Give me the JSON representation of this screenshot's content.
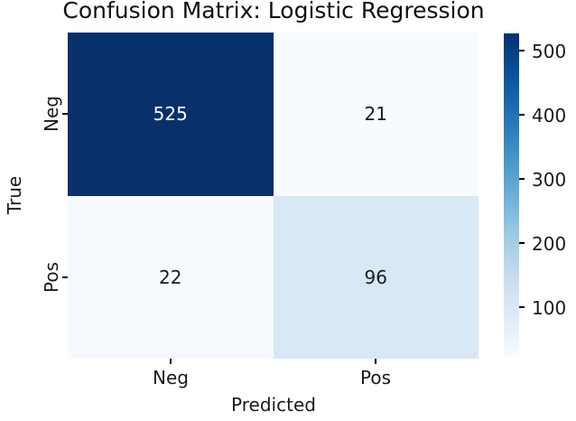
{
  "figure": {
    "background": "#ffffff",
    "text_color": "#1a1a1a"
  },
  "chart_data": {
    "type": "heatmap",
    "title": "Confusion Matrix: Logistic Regression",
    "xlabel": "Predicted",
    "ylabel": "True",
    "x_tick_labels": [
      "Neg",
      "Pos"
    ],
    "y_tick_labels": [
      "Neg",
      "Pos"
    ],
    "matrix": [
      [
        525,
        21
      ],
      [
        22,
        96
      ]
    ],
    "colormap": "Blues",
    "grid": false,
    "cells": [
      {
        "value": "525",
        "bg": "#08306b",
        "fg": "#ffffff"
      },
      {
        "value": "21",
        "bg": "#f7fbff",
        "fg": "#1a1a1a"
      },
      {
        "value": "22",
        "bg": "#f6fafe",
        "fg": "#1a1a1a"
      },
      {
        "value": "96",
        "bg": "#d9e8f5",
        "fg": "#1a1a1a"
      }
    ],
    "colorbar": {
      "position": "right",
      "ticks": [
        "500",
        "400",
        "300",
        "200",
        "100"
      ],
      "min_color": "#f7fbff",
      "max_color": "#08306b"
    }
  }
}
